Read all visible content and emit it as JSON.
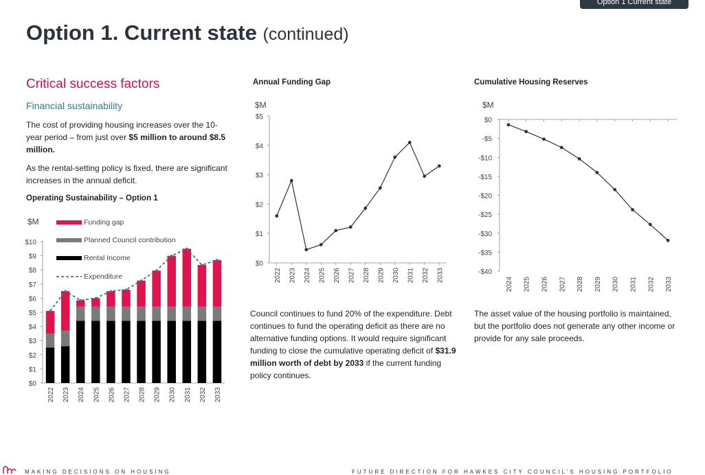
{
  "tag": "Option 1 Current state",
  "title": {
    "main": "Option 1. Current state",
    "sub": "(continued)"
  },
  "csf_heading": "Critical success factors",
  "fin_heading": "Financial sustainability",
  "para1": {
    "text1": "The cost of providing housing increases over the 10-year period – from just over ",
    "bold1": "$5 million to around $8.5 million."
  },
  "para2": "As the rental-setting policy is fixed, there are significant increases in the annual deficit.",
  "op_heading": "Operating Sustainability – Option 1",
  "gap_heading": "Annual Funding Gap",
  "res_heading": "Cumulative Housing Reserves",
  "middle_text": {
    "text1": "Council continues to fund 20% of the expenditure. Debt continues to fund the operating deficit as there are no alternative funding options. It would require significant funding to close the cumulative operating deficit of ",
    "bold1": "$31.9 million worth of debt by 2033",
    "text2": " if the current funding policy continues."
  },
  "right_text": "The asset value of the housing portfolio is maintained, but the portfolio does not generate any other income or provide for any sale proceeds.",
  "footer": {
    "left": "MAKING DECISIONS ON HOUSING",
    "right": "FUTURE DIRECTION FOR HAWKES CITY COUNCIL'S HOUSING PORTFOLIO"
  },
  "colors": {
    "accent": "#d5104f",
    "teal": "#2f7c8c",
    "dark": "#2a333d",
    "gap": "#e0134f",
    "council": "#7a7a7a",
    "rental": "#000000",
    "expenditure": "#3d7a86"
  },
  "chart_data": [
    {
      "type": "bar",
      "title": "Operating Sustainability – Option 1",
      "unit": "$M",
      "categories": [
        "2022",
        "2023",
        "2024",
        "2025",
        "2026",
        "2027",
        "2028",
        "2029",
        "2030",
        "2031",
        "2032",
        "2033"
      ],
      "stacked": true,
      "series": [
        {
          "name": "Rental Income",
          "values": [
            2.5,
            2.6,
            4.4,
            4.4,
            4.4,
            4.4,
            4.4,
            4.4,
            4.4,
            4.4,
            4.4,
            4.4
          ]
        },
        {
          "name": "Planned Council contribution",
          "values": [
            1.0,
            1.1,
            1.0,
            1.0,
            1.0,
            1.0,
            1.0,
            1.0,
            1.0,
            1.0,
            1.0,
            1.0
          ]
        },
        {
          "name": "Funding gap",
          "values": [
            1.6,
            2.8,
            0.45,
            0.6,
            1.1,
            1.2,
            1.85,
            2.55,
            3.6,
            4.1,
            2.95,
            3.3
          ]
        }
      ],
      "line": {
        "name": "Expenditure",
        "values": [
          5.1,
          6.5,
          5.85,
          6.0,
          6.5,
          6.6,
          7.25,
          7.95,
          9.0,
          9.5,
          8.35,
          8.7
        ]
      },
      "ylim": [
        0,
        10
      ],
      "yticks": [
        "$0",
        "$1",
        "$2",
        "$3",
        "$4",
        "$5",
        "$6",
        "$7",
        "$8",
        "$9",
        "$10"
      ],
      "legend": "top-right"
    },
    {
      "type": "line",
      "title": "Annual Funding Gap",
      "unit": "$M",
      "x": [
        "2022",
        "2023",
        "2024",
        "2025",
        "2026",
        "2027",
        "2028",
        "2029",
        "2030",
        "2031",
        "2032",
        "2033"
      ],
      "values": [
        1.6,
        2.8,
        0.45,
        0.62,
        1.1,
        1.22,
        1.86,
        2.55,
        3.6,
        4.1,
        2.95,
        3.3
      ],
      "ylim": [
        0,
        5
      ],
      "yticks": [
        "$0",
        "$1",
        "$2",
        "$3",
        "$4",
        "$5"
      ]
    },
    {
      "type": "line",
      "title": "Cumulative Housing Reserves",
      "unit": "$M",
      "x": [
        "2024",
        "2025",
        "2026",
        "2027",
        "2028",
        "2029",
        "2030",
        "2031",
        "2032",
        "2033"
      ],
      "values": [
        -1.4,
        -3.2,
        -5.2,
        -7.4,
        -10.4,
        -14.0,
        -18.5,
        -23.8,
        -27.7,
        -31.9
      ],
      "ylim": [
        -40,
        0
      ],
      "yticks": [
        "$0",
        "-$5",
        "-$10",
        "-$15",
        "-$20",
        "-$25",
        "-$30",
        "-$35",
        "-$40"
      ]
    }
  ]
}
